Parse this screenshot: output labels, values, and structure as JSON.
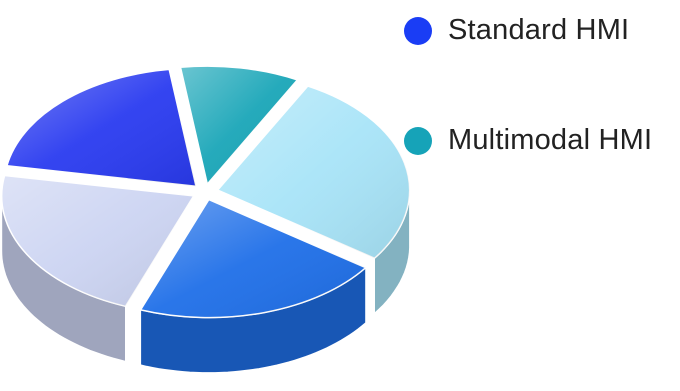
{
  "chart_data": {
    "type": "pie",
    "style": "3d-exploded",
    "title": "",
    "legend": {
      "placement": "top-right",
      "entries": [
        {
          "name": "Standard HMI",
          "color": "#1a3df5"
        },
        {
          "name": "Multimodal HMI",
          "color": "#16a3b8"
        }
      ]
    },
    "slices": [
      {
        "value": 10,
        "color": "#1aa6b8"
      },
      {
        "value": 27,
        "color": "#a8e4f8"
      },
      {
        "value": 21,
        "color": "#1f6fe8"
      },
      {
        "value": 22,
        "color": "#ccd4f2"
      },
      {
        "value": 20,
        "color": "#2a3bf0"
      }
    ]
  }
}
